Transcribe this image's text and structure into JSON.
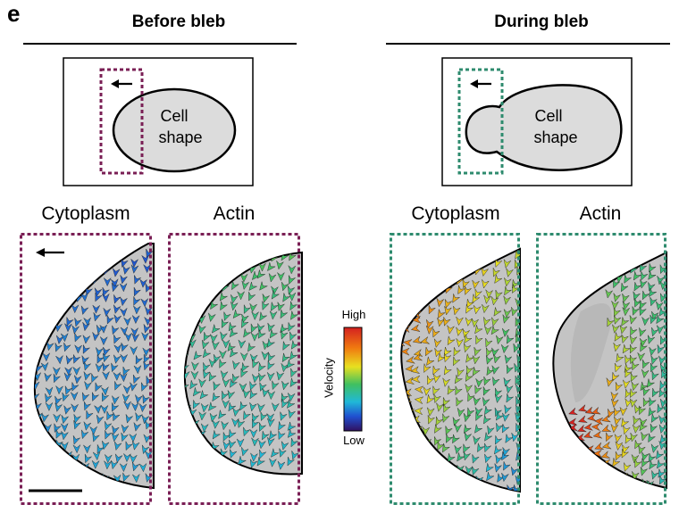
{
  "panel_letter": "e",
  "headers": {
    "before": "Before bleb",
    "during": "During bleb"
  },
  "schematic": {
    "cell_label_line1": "Cell",
    "cell_label_line2": "shape"
  },
  "columns": {
    "before_cytoplasm": "Cytoplasm",
    "before_actin": "Actin",
    "during_cytoplasm": "Cytoplasm",
    "during_actin": "Actin"
  },
  "legend": {
    "high": "High",
    "low": "Low",
    "axis": "Velocity"
  },
  "colors": {
    "before_box": "#7a1f55",
    "during_box": "#2e8b6e",
    "cell_fill": "#c8c8c8",
    "cell_fill_light": "#e0e0e0"
  }
}
